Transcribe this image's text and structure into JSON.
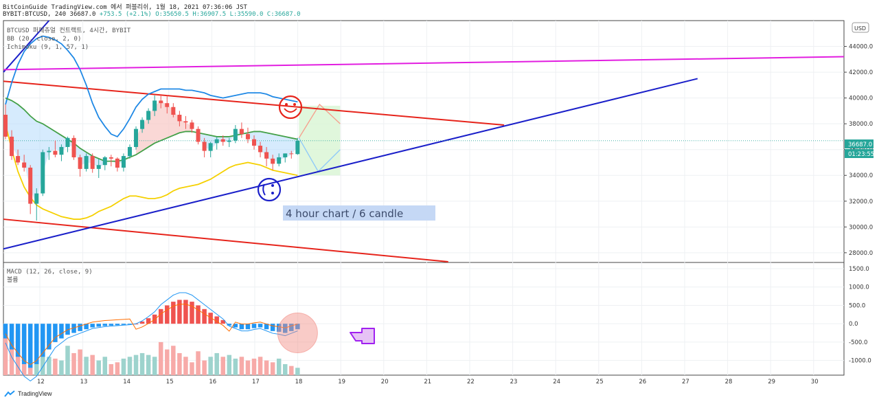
{
  "header": {
    "line1": "BitCoinGuide TradingView.com 에서 퍼블리쉬, 1월 18, 2021 07:36:06 JST",
    "symbol": "BYBIT:BTCUSD, 240",
    "last": "36687.0",
    "change": "+753.5 (+2.1%)",
    "o": "O:35650.5",
    "h": "H:36907.5",
    "l": "L:35590.0",
    "c": "C:36687.0"
  },
  "indicators": {
    "title": "BTCUSD 퍼페츄얼 컨트랙트, 4시간, BYBIT",
    "bb": "BB (20, close, 2, 0)",
    "ichimoku": "Ichimoku (9, 1, 57, 1)",
    "macd": "MACD (12, 26, close, 9)",
    "volume": "볼륨"
  },
  "annotation": "4 hour chart / 6 candle",
  "price_tag": "36687.0",
  "timer_tag": "01:23:55",
  "currency": "USD",
  "footer": "TradingView",
  "colors": {
    "up": "#26a69a",
    "down": "#ef5350",
    "bb_upper": "#1e88e5",
    "bb_mid": "#43a047",
    "bb_lower": "#f5d000",
    "red_line": "#e6231a",
    "blue_line": "#1a1fc9",
    "magenta_line": "#e21de0"
  },
  "chart_data": [
    {
      "type": "candlestick",
      "x_ticks": [
        "12",
        "13",
        "14",
        "15",
        "16",
        "17",
        "18",
        "19",
        "20",
        "21",
        "22",
        "23",
        "24",
        "25",
        "26",
        "27",
        "28",
        "29",
        "30"
      ],
      "y_ticks": [
        "28000.0",
        "30000.0",
        "32000.0",
        "34000.0",
        "36000.0",
        "38000.0",
        "40000.0",
        "42000.0",
        "44000.0"
      ],
      "ylim": [
        27300,
        46000
      ],
      "candles": [
        [
          38700,
          39500,
          36800,
          37000
        ],
        [
          37000,
          37500,
          35200,
          35500
        ],
        [
          35500,
          36000,
          34800,
          35000
        ],
        [
          35000,
          35600,
          34300,
          34600
        ],
        [
          34600,
          34800,
          31000,
          31800
        ],
        [
          31800,
          33000,
          30500,
          32600
        ],
        [
          32600,
          36000,
          32400,
          35800
        ],
        [
          35800,
          36200,
          35200,
          35900
        ],
        [
          35900,
          36700,
          35400,
          35600
        ],
        [
          35600,
          36400,
          35100,
          36200
        ],
        [
          36200,
          37000,
          35800,
          36900
        ],
        [
          36900,
          37100,
          35200,
          35400
        ],
        [
          35400,
          35600,
          33900,
          34500
        ],
        [
          34500,
          35700,
          34300,
          35500
        ],
        [
          35500,
          35700,
          34200,
          34500
        ],
        [
          34500,
          35300,
          33800,
          34800
        ],
        [
          34800,
          35500,
          34400,
          35400
        ],
        [
          35400,
          35600,
          34700,
          35300
        ],
        [
          35300,
          35400,
          34300,
          34600
        ],
        [
          34600,
          35700,
          34300,
          35500
        ],
        [
          35500,
          36400,
          35300,
          36200
        ],
        [
          36200,
          37800,
          36000,
          37600
        ],
        [
          37600,
          38500,
          37300,
          38300
        ],
        [
          38300,
          39200,
          38000,
          39000
        ],
        [
          39000,
          40200,
          38600,
          39800
        ],
        [
          39800,
          40300,
          39200,
          39600
        ],
        [
          39600,
          40200,
          38800,
          39300
        ],
        [
          39300,
          39600,
          38500,
          38700
        ],
        [
          38700,
          39000,
          37800,
          38200
        ],
        [
          38200,
          38600,
          37600,
          38100
        ],
        [
          38100,
          38300,
          37300,
          37600
        ],
        [
          37600,
          37800,
          36400,
          36600
        ],
        [
          36600,
          36900,
          35400,
          35900
        ],
        [
          35900,
          36600,
          35400,
          36500
        ],
        [
          36500,
          37000,
          36000,
          36800
        ],
        [
          36800,
          37100,
          36300,
          36600
        ],
        [
          36600,
          36900,
          36200,
          36700
        ],
        [
          36700,
          37900,
          36500,
          37600
        ],
        [
          37600,
          38100,
          36900,
          37200
        ],
        [
          37200,
          37700,
          36500,
          36800
        ],
        [
          36800,
          37100,
          36000,
          36300
        ],
        [
          36300,
          36600,
          35400,
          35800
        ],
        [
          35800,
          36200,
          34700,
          35300
        ],
        [
          35300,
          35600,
          34400,
          34900
        ],
        [
          34900,
          35700,
          34700,
          35400
        ],
        [
          35400,
          35700,
          35000,
          35700
        ],
        [
          35700,
          35900,
          35300,
          35650
        ],
        [
          35650,
          36907,
          35590,
          36687
        ]
      ],
      "bb_upper": [
        39500,
        41200,
        42600,
        43600,
        44200,
        44600,
        44800,
        44700,
        44500,
        44200,
        43700,
        43100,
        42200,
        41000,
        39600,
        38500,
        37800,
        37200,
        37000,
        37600,
        38400,
        39300,
        39900,
        40300,
        40500,
        40700,
        40700,
        40700,
        40700,
        40600,
        40600,
        40500,
        40400,
        40200,
        40100,
        40000,
        40100,
        40200,
        40300,
        40400,
        40400,
        40400,
        40300,
        40100,
        40000,
        39900,
        39800,
        39700
      ],
      "bb_mid": [
        40000,
        39800,
        39500,
        39100,
        38600,
        38200,
        38000,
        37700,
        37400,
        37100,
        36800,
        36500,
        36100,
        35800,
        35500,
        35300,
        35100,
        35100,
        35100,
        35200,
        35400,
        35600,
        35900,
        36200,
        36500,
        36700,
        36900,
        37100,
        37300,
        37400,
        37400,
        37300,
        37200,
        37100,
        37000,
        37000,
        37000,
        37100,
        37200,
        37300,
        37400,
        37400,
        37300,
        37200,
        37100,
        37000,
        36900,
        36800
      ],
      "bb_lower": [
        38000,
        36000,
        34300,
        33100,
        32300,
        31700,
        31400,
        31200,
        31000,
        30800,
        30700,
        30600,
        30600,
        30700,
        30900,
        31200,
        31400,
        31600,
        31900,
        32200,
        32400,
        32400,
        32300,
        32200,
        32200,
        32300,
        32500,
        32800,
        33000,
        33100,
        33200,
        33300,
        33500,
        33700,
        34000,
        34300,
        34600,
        34800,
        34900,
        35000,
        34900,
        34800,
        34600,
        34400,
        34300,
        34200,
        34100,
        34000
      ],
      "trendlines": [
        "red-upper",
        "red-lower",
        "blue-upper",
        "blue-support",
        "magenta"
      ]
    },
    {
      "type": "bar",
      "name": "MACD",
      "y_ticks": [
        "-1000.0",
        "-500.0",
        "0.0",
        "500.0",
        "1000.0",
        "1500.0"
      ],
      "ylim": [
        -1400,
        1650
      ],
      "histogram": [
        -400,
        -700,
        -900,
        -1100,
        -1200,
        -1100,
        -900,
        -700,
        -500,
        -400,
        -300,
        -250,
        -200,
        -150,
        -100,
        -80,
        -60,
        -50,
        -40,
        -30,
        -20,
        0,
        60,
        150,
        250,
        400,
        500,
        600,
        650,
        650,
        600,
        500,
        400,
        300,
        200,
        100,
        -50,
        -100,
        -150,
        -150,
        -120,
        -100,
        -150,
        -200,
        -220,
        -250,
        -200,
        -150
      ],
      "volume": [
        1100,
        900,
        1200,
        1300,
        700,
        600,
        1100,
        500,
        450,
        400,
        800,
        600,
        700,
        500,
        550,
        400,
        500,
        300,
        350,
        450,
        500,
        550,
        600,
        550,
        500,
        900,
        700,
        800,
        600,
        500,
        350,
        650,
        400,
        500,
        600,
        500,
        550,
        450,
        500,
        400,
        450,
        500,
        400,
        350,
        450,
        300,
        250,
        200
      ]
    }
  ]
}
